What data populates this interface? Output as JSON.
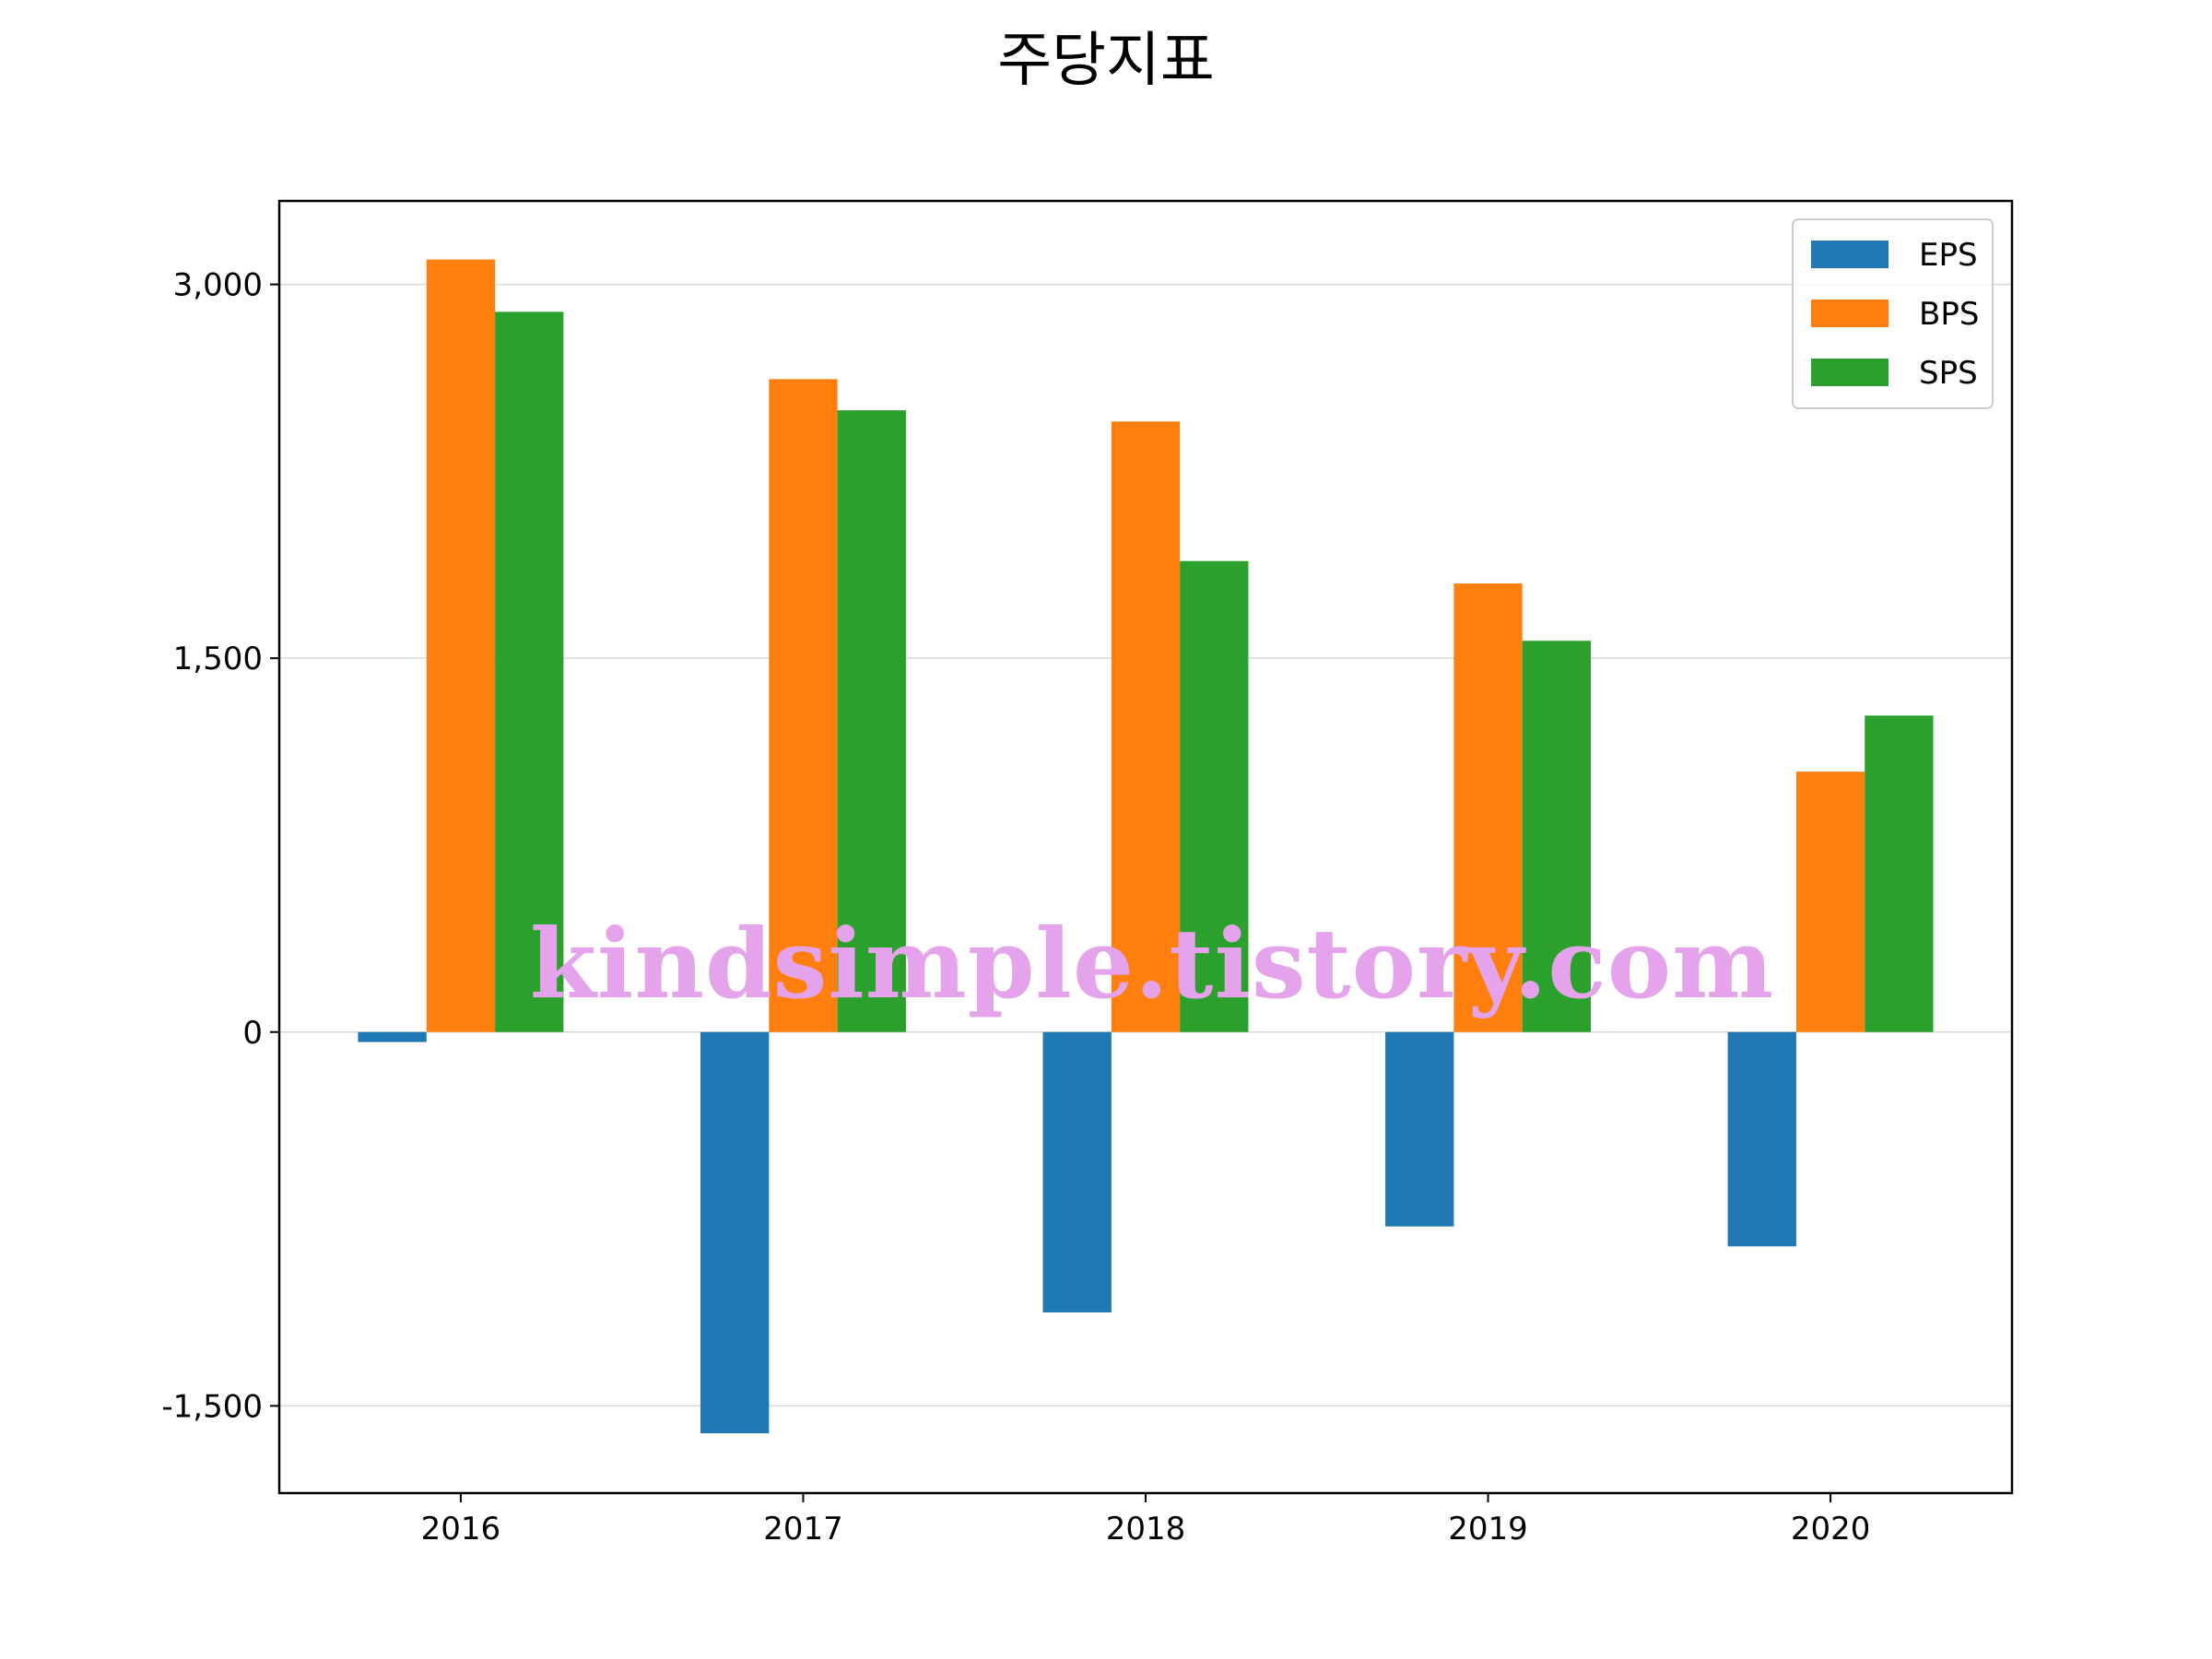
{
  "colors": {
    "EPS": "#1f77b4",
    "BPS": "#ff7f0e",
    "SPS": "#2ca02c",
    "grid": "#d9d9d9",
    "watermark": "#e4a3eb"
  },
  "watermark": "kindsimple.tistory.com",
  "chart_data": {
    "type": "bar",
    "title": "주당지표",
    "xlabel": "",
    "ylabel": "",
    "categories": [
      "2016",
      "2017",
      "2018",
      "2019",
      "2020"
    ],
    "series": [
      {
        "name": "EPS",
        "values": [
          -40,
          -1610,
          -1125,
          -780,
          -860
        ]
      },
      {
        "name": "BPS",
        "values": [
          3100,
          2620,
          2450,
          1800,
          1045
        ]
      },
      {
        "name": "SPS",
        "values": [
          2890,
          2495,
          1890,
          1570,
          1270
        ]
      }
    ],
    "ylim": [
      -1850,
      3335
    ],
    "yticks": [
      -1500,
      0,
      1500,
      3000
    ],
    "ytick_labels": [
      "-1,500",
      "0",
      "1,500",
      "3,000"
    ],
    "grid": "y",
    "legend": "top-right"
  }
}
